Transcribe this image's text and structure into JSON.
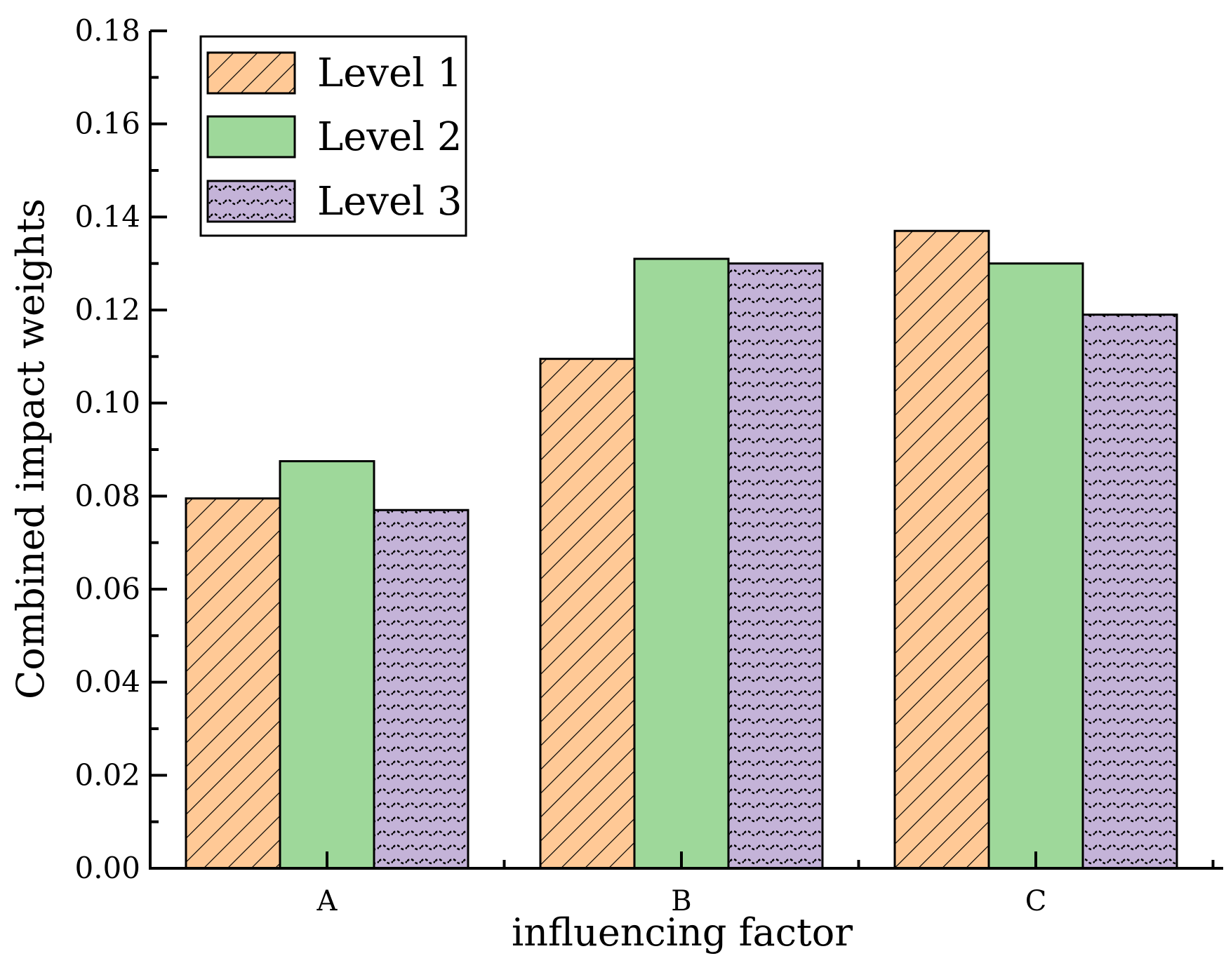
{
  "chart_data": {
    "type": "bar",
    "title": "",
    "xlabel": "influencing factor",
    "ylabel": "Combined impact weights",
    "categories": [
      "A",
      "B",
      "C"
    ],
    "series": [
      {
        "name": "Level 1",
        "values": [
          0.0795,
          0.1095,
          0.137
        ],
        "color": "#FFC996",
        "pattern": "diagonal-hatch"
      },
      {
        "name": "Level 2",
        "values": [
          0.0875,
          0.131,
          0.13
        ],
        "color": "#9ED89A",
        "pattern": "solid"
      },
      {
        "name": "Level 3",
        "values": [
          0.077,
          0.13,
          0.119
        ],
        "color": "#C4B3D8",
        "pattern": "dotted-wave"
      }
    ],
    "ylim": [
      0,
      0.18
    ],
    "yticks": [
      "0.00",
      "0.02",
      "0.04",
      "0.06",
      "0.08",
      "0.10",
      "0.12",
      "0.14",
      "0.16",
      "0.18"
    ],
    "legend_position": "top-left",
    "grid": false
  }
}
